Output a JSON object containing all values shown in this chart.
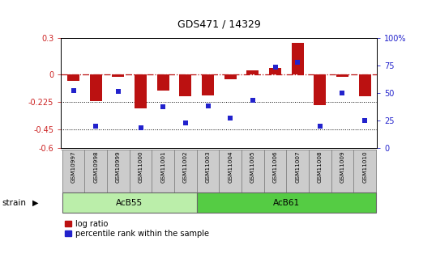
{
  "title": "GDS471 / 14329",
  "samples": [
    "GSM10997",
    "GSM10998",
    "GSM10999",
    "GSM11000",
    "GSM11001",
    "GSM11002",
    "GSM11003",
    "GSM11004",
    "GSM11005",
    "GSM11006",
    "GSM11007",
    "GSM11008",
    "GSM11009",
    "GSM11010"
  ],
  "log_ratio": [
    -0.05,
    -0.22,
    -0.02,
    -0.28,
    -0.13,
    -0.18,
    -0.17,
    -0.04,
    0.03,
    0.05,
    0.26,
    -0.25,
    -0.02,
    -0.18
  ],
  "percentile_rank": [
    52,
    20,
    51,
    18,
    37,
    23,
    38,
    27,
    43,
    73,
    78,
    20,
    50,
    25
  ],
  "ylim_left": [
    -0.6,
    0.3
  ],
  "ylim_right": [
    0,
    100
  ],
  "yticks_left": [
    -0.6,
    -0.45,
    -0.225,
    0.0,
    0.3
  ],
  "ytick_labels_left": [
    "-0.6",
    "-0.45",
    "-0.225",
    "0",
    "0.3"
  ],
  "yticks_right": [
    0,
    25,
    50,
    75,
    100
  ],
  "ytick_labels_right": [
    "0",
    "25",
    "50",
    "75",
    "100%"
  ],
  "hlines": [
    -0.225,
    -0.45
  ],
  "dashed_hline": 0.0,
  "bar_color": "#BB1111",
  "dot_color": "#2222CC",
  "bar_width": 0.55,
  "strain_label": "strain",
  "legend_bar_label": "log ratio",
  "legend_dot_label": "percentile rank within the sample",
  "acb55_count": 6,
  "acb61_count": 8,
  "group_row_color_acb55": "#bbeeaa",
  "group_row_color_acb61": "#55cc44",
  "label_color_left": "#CC2222",
  "label_color_right": "#2222CC",
  "bg_color": "#ffffff",
  "tick_color_left": "#CC2222",
  "tick_color_right": "#2222CC"
}
